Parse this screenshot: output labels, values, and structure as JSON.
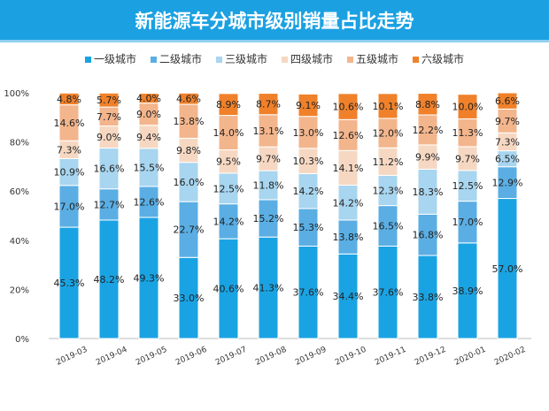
{
  "chart_data": {
    "type": "bar",
    "stacked": true,
    "title": "新能源车分城市级别销量占比走势",
    "categories": [
      "2019-03",
      "2019-04",
      "2019-05",
      "2019-06",
      "2019-07",
      "2019-08",
      "2019-09",
      "2019-10",
      "2019-11",
      "2019-12",
      "2020-01",
      "2020-02"
    ],
    "series": [
      {
        "name": "一级城市",
        "color": "#1aa3e3",
        "values": [
          45.3,
          48.2,
          49.3,
          33.0,
          40.6,
          41.3,
          37.6,
          34.4,
          37.6,
          33.8,
          38.9,
          57.0
        ]
      },
      {
        "name": "二级城市",
        "color": "#5aaee4",
        "values": [
          17.0,
          12.7,
          12.6,
          22.7,
          14.2,
          15.2,
          15.3,
          13.8,
          16.5,
          16.8,
          17.0,
          12.9
        ]
      },
      {
        "name": "三级城市",
        "color": "#a8d5ef",
        "values": [
          10.9,
          16.6,
          15.5,
          16.0,
          12.5,
          11.8,
          14.2,
          14.2,
          12.3,
          18.3,
          12.5,
          6.5
        ]
      },
      {
        "name": "四级城市",
        "color": "#f6d8c2",
        "values": [
          7.3,
          9.0,
          9.4,
          9.8,
          9.5,
          9.7,
          10.3,
          14.1,
          11.2,
          9.9,
          9.7,
          7.3
        ]
      },
      {
        "name": "五级城市",
        "color": "#f3b58c",
        "values": [
          14.6,
          7.7,
          9.0,
          13.8,
          14.0,
          13.1,
          13.0,
          12.6,
          12.0,
          12.2,
          11.3,
          9.7
        ]
      },
      {
        "name": "六级城市",
        "color": "#f0812a",
        "values": [
          4.8,
          5.7,
          4.0,
          4.6,
          8.9,
          8.7,
          9.1,
          10.6,
          10.1,
          8.8,
          10.0,
          6.6
        ]
      }
    ],
    "yticks": [
      "0%",
      "20%",
      "40%",
      "60%",
      "80%",
      "100%"
    ],
    "ylim": [
      0,
      100
    ],
    "legend": "top",
    "grid": false
  }
}
